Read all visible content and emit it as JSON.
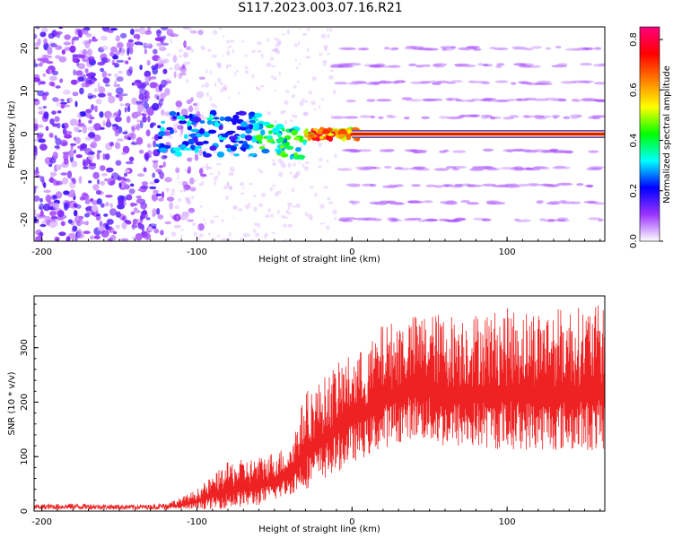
{
  "title": "S117.2023.003.07.16.R21",
  "chart_data": [
    {
      "type": "heatmap",
      "xlabel": "Height of straight line (km)",
      "ylabel": "Frequency (Hz)",
      "xlim": [
        -205,
        163
      ],
      "ylim": [
        -25,
        25
      ],
      "xticks": [
        -200,
        -100,
        0,
        100
      ],
      "yticks": [
        -20,
        -10,
        0,
        10,
        20
      ],
      "colorbar": {
        "label": "Normalized spectral amplitude",
        "range": [
          0,
          0.85
        ],
        "ticks": [
          "0.0",
          "0.2",
          "0.4",
          "0.6",
          "0.8"
        ],
        "tick_values": [
          0.0,
          0.2,
          0.4,
          0.6,
          0.8
        ],
        "colormap": [
          "#ffffff",
          "#9a33ff",
          "#0000ff",
          "#00ffff",
          "#00ff00",
          "#ffff00",
          "#ff8000",
          "#ff0000",
          "#ff0080"
        ]
      },
      "features": [
        {
          "x_range": [
            -205,
            -120
          ],
          "freq_range": [
            -25,
            25
          ],
          "amplitude": 0.1
        },
        {
          "x_range": [
            -120,
            -60
          ],
          "freq_range": [
            -5,
            5
          ],
          "amplitude": 0.25
        },
        {
          "x_range": [
            -60,
            -30
          ],
          "freq_range": [
            -3,
            3
          ],
          "amplitude": 0.4
        },
        {
          "x_range": [
            -30,
            5
          ],
          "freq_range": [
            -1,
            1
          ],
          "amplitude": 0.65
        },
        {
          "x_range": [
            5,
            163
          ],
          "freq_range": [
            0,
            0
          ],
          "amplitude": 0.8
        }
      ],
      "harmonic_bands_hz": [
        -20,
        -16,
        -12,
        -8,
        -4,
        4,
        8,
        12,
        16,
        20
      ]
    },
    {
      "type": "line",
      "xlabel": "Height of straight line (km)",
      "ylabel": "SNR (10 * v/v)",
      "xlim": [
        -205,
        163
      ],
      "ylim": [
        0,
        395
      ],
      "xticks": [
        -200,
        -100,
        0,
        100
      ],
      "yticks": [
        0,
        100,
        200,
        300
      ],
      "color": "#ee2222",
      "envelope": {
        "x": [
          -205,
          -180,
          -150,
          -130,
          -120,
          -110,
          -100,
          -80,
          -60,
          -40,
          -30,
          -20,
          -10,
          0,
          10,
          20,
          30,
          40,
          50,
          60,
          80,
          100,
          120,
          140,
          163
        ],
        "lower": [
          3,
          3,
          3,
          3,
          3,
          3,
          3,
          5,
          10,
          30,
          40,
          55,
          70,
          90,
          100,
          115,
          125,
          135,
          125,
          115,
          115,
          112,
          112,
          110,
          110
        ],
        "upper": [
          12,
          14,
          12,
          12,
          15,
          25,
          40,
          90,
          100,
          120,
          220,
          240,
          270,
          290,
          300,
          345,
          350,
          360,
          365,
          362,
          365,
          372,
          372,
          375,
          378
        ]
      }
    }
  ]
}
